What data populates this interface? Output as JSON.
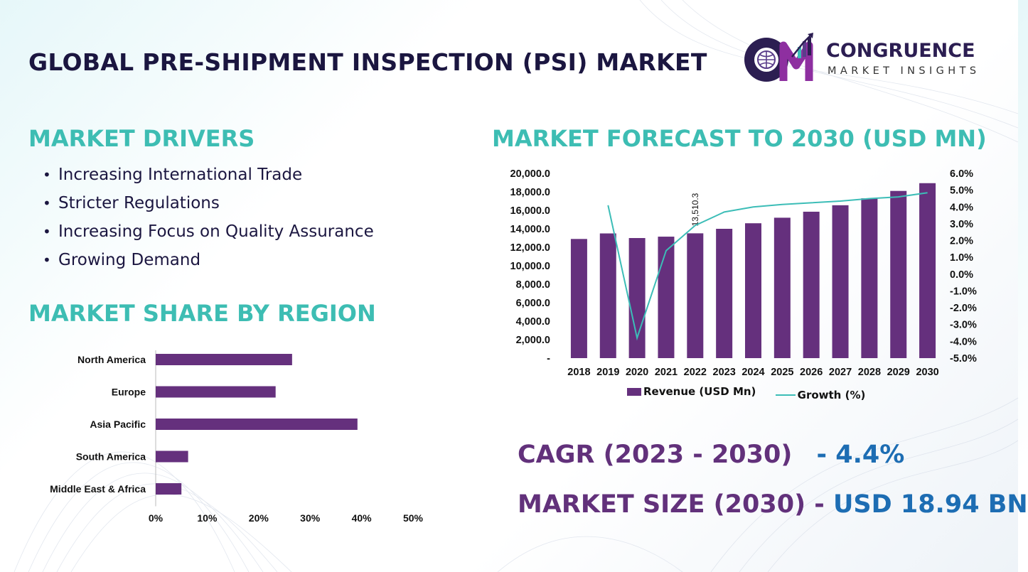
{
  "title": "GLOBAL PRE-SHIPMENT INSPECTION (PSI) MARKET",
  "logo": {
    "name": "CONGRUENCE",
    "sub": "MARKET INSIGHTS"
  },
  "drivers": {
    "heading": "MARKET DRIVERS",
    "items": [
      "Increasing International Trade",
      "Stricter Regulations",
      "Increasing Focus on Quality Assurance",
      "Growing Demand"
    ]
  },
  "region": {
    "heading": "MARKET SHARE BY REGION"
  },
  "forecast": {
    "heading": "MARKET FORECAST TO 2030 (USD MN)"
  },
  "kpis": {
    "cagr_label": "CAGR (2023 - 2030)",
    "cagr_value": "- 4.4%",
    "size_label": "MARKET SIZE (2030) -",
    "size_value": "USD 18.94 BN"
  },
  "colors": {
    "bar": "#65307d",
    "line": "#3cbdb7",
    "heading": "#3dbdb3",
    "title": "#1b1640",
    "value": "#1d6db3"
  },
  "chart_data": [
    {
      "type": "bar",
      "orientation": "horizontal",
      "categories": [
        "North America",
        "Europe",
        "Asia Pacific",
        "South America",
        "Middle East & Africa"
      ],
      "values": [
        26.5,
        23.3,
        39.2,
        6.3,
        5.0
      ],
      "xlim": [
        0,
        50
      ],
      "xticks": [
        "0%",
        "10%",
        "20%",
        "30%",
        "40%",
        "50%"
      ],
      "grid": false
    },
    {
      "type": "bar",
      "combo": "bar+line",
      "categories": [
        "2018",
        "2019",
        "2020",
        "2021",
        "2022",
        "2023",
        "2024",
        "2025",
        "2026",
        "2027",
        "2028",
        "2029",
        "2030"
      ],
      "series": [
        {
          "name": "Revenue (USD Mn)",
          "type": "bar",
          "axis": "left",
          "values": [
            12900,
            13500,
            13000,
            13150,
            13510.3,
            14000,
            14600,
            15200,
            15850,
            16550,
            17300,
            18100,
            18940
          ]
        },
        {
          "name": "Growth (%)",
          "type": "line",
          "axis": "right",
          "values": [
            null,
            4.1,
            -3.8,
            1.4,
            2.9,
            3.7,
            4.0,
            4.15,
            4.25,
            4.35,
            4.5,
            4.6,
            4.85
          ]
        }
      ],
      "annotation": {
        "category": "2022",
        "text": "13,510.3"
      },
      "ylim_left": [
        0,
        20000
      ],
      "yticks_left": [
        "-",
        "2,000.0",
        "4,000.0",
        "6,000.0",
        "8,000.0",
        "10,000.0",
        "12,000.0",
        "14,000.0",
        "16,000.0",
        "18,000.0",
        "20,000.0"
      ],
      "ylim_right": [
        -5,
        6
      ],
      "yticks_right": [
        "-5.0%",
        "-4.0%",
        "-3.0%",
        "-2.0%",
        "-1.0%",
        "0.0%",
        "1.0%",
        "2.0%",
        "3.0%",
        "4.0%",
        "5.0%",
        "6.0%"
      ],
      "legend": "bottom",
      "grid": false
    }
  ]
}
